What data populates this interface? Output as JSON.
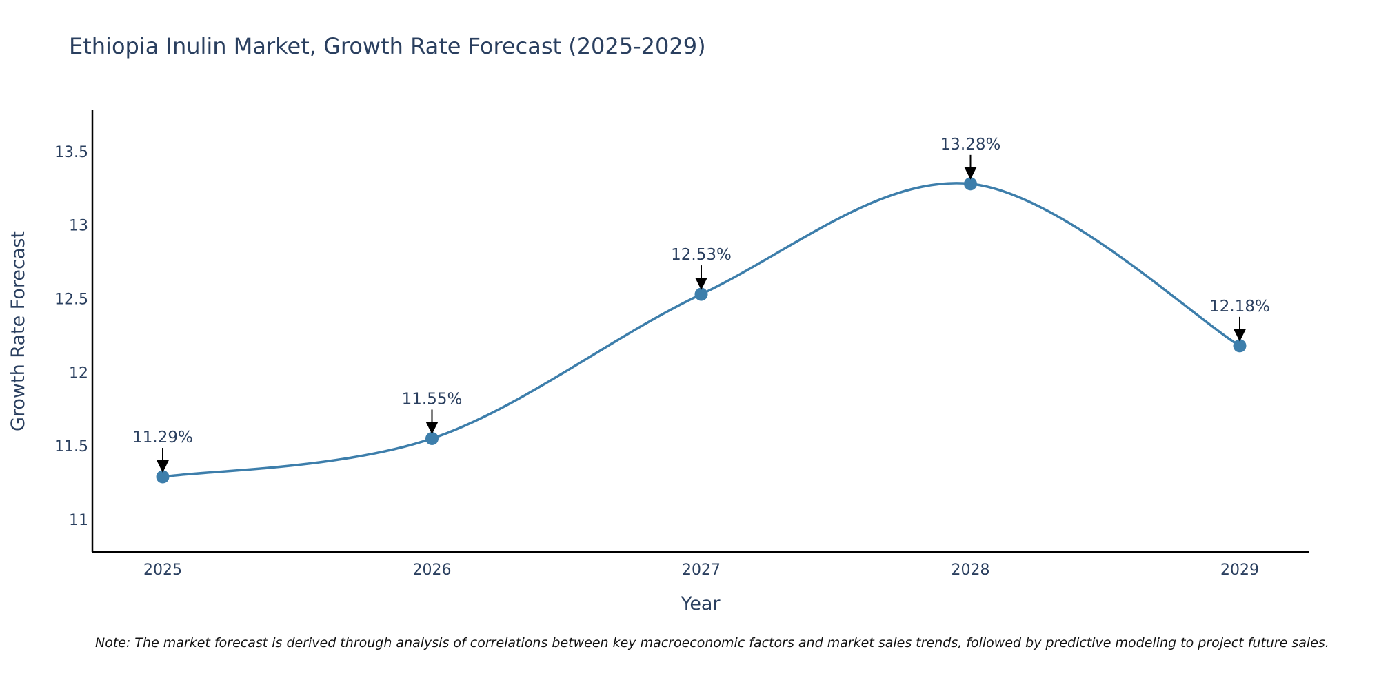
{
  "colors": {
    "line": "#3d7eab",
    "marker": "#3d7eab",
    "axis": "#000000",
    "text": "#2a3f5f",
    "arrow": "#000000"
  },
  "chart_data": {
    "type": "line",
    "title": "Ethiopia Inulin Market, Growth Rate Forecast (2025-2029)",
    "xlabel": "Year",
    "ylabel": "Growth Rate Forecast",
    "categories": [
      "2025",
      "2026",
      "2027",
      "2028",
      "2029"
    ],
    "series": [
      {
        "name": "Growth Rate Forecast",
        "values": [
          11.29,
          11.55,
          12.53,
          13.28,
          12.18
        ]
      }
    ],
    "data_labels": [
      "11.29%",
      "11.55%",
      "12.53%",
      "13.28%",
      "12.18%"
    ],
    "ylim": [
      10.78,
      13.78
    ],
    "yticks": [
      11,
      11.5,
      12,
      12.5,
      13,
      13.5
    ],
    "ytick_labels": [
      "11",
      "11.5",
      "12",
      "12.5",
      "13",
      "13.5"
    ],
    "line_shape": "spline",
    "grid": false
  },
  "note": "Note: The market forecast is derived through analysis of correlations between key macroeconomic factors and market sales trends, followed by predictive modeling to project future sales."
}
